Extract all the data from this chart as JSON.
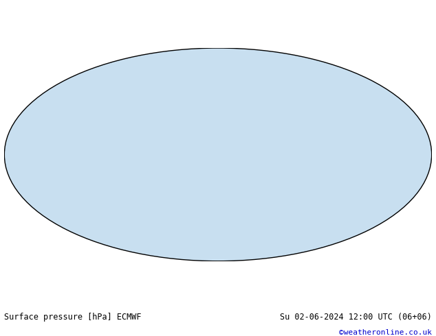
{
  "title_left": "Surface pressure [hPa] ECMWF",
  "title_right": "Su 02-06-2024 12:00 UTC (06+06)",
  "watermark": "©weatheronline.co.uk",
  "background_color": "#ffffff",
  "map_background": "#e8e8e8",
  "ocean_color": "#d0e8f8",
  "land_color": "#c8e8b0",
  "contour_color_low": "#0000ff",
  "contour_color_high": "#ff0000",
  "contour_color_mid": "#000000",
  "fig_width": 6.34,
  "fig_height": 4.9,
  "dpi": 100,
  "text_color_left": "#000000",
  "text_color_right": "#000000",
  "text_color_watermark": "#0000cc",
  "fontsize_labels": 8.5,
  "fontsize_watermark": 8
}
